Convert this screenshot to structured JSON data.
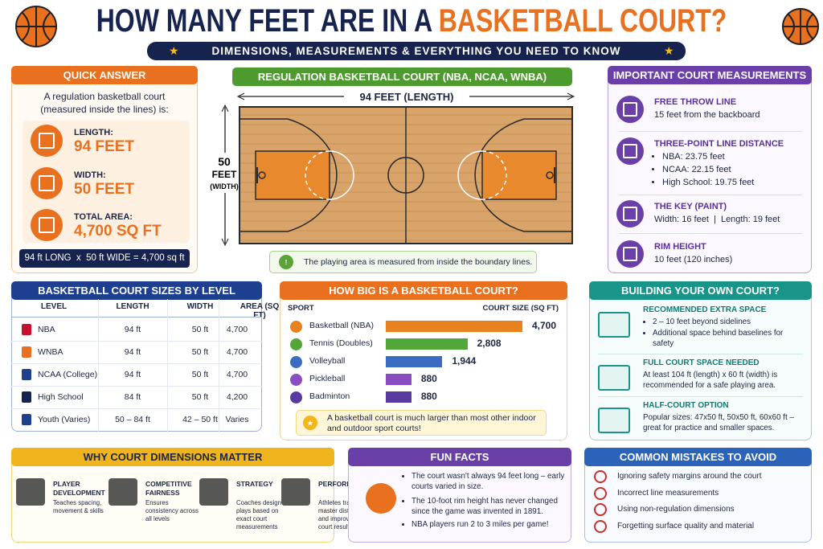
{
  "header": {
    "title_main": "HOW MANY FEET ARE IN A",
    "title_accent": "BASKETBALL COURT?",
    "subtitle": "DIMENSIONS, MEASUREMENTS & EVERYTHING YOU NEED TO KNOW"
  },
  "quick_answer": {
    "title": "QUICK ANSWER",
    "intro": "A regulation basketball court (measured inside the lines) is:",
    "items": [
      {
        "label": "LENGTH:",
        "value": "94 FEET"
      },
      {
        "label": "WIDTH:",
        "value": "50 FEET"
      },
      {
        "label": "TOTAL AREA:",
        "value": "4,700 SQ FT"
      }
    ],
    "formula": "94 ft LONG  x  50 ft WIDE = 4,700 sq ft"
  },
  "court": {
    "title": "REGULATION BASKETBALL COURT (NBA, NCAA, WNBA)",
    "length_label": "94 FEET (LENGTH)",
    "width_number": "50",
    "width_unit": "FEET",
    "width_note": "(WIDTH)",
    "note": "The playing area is measured from inside the boundary lines."
  },
  "measurements": {
    "title": "IMPORTANT COURT MEASUREMENTS",
    "items": [
      {
        "title": "FREE THROW LINE",
        "lines": [
          "15 feet from the backboard"
        ]
      },
      {
        "title": "THREE-POINT LINE DISTANCE",
        "lines": [
          "NBA: 23.75 feet",
          "NCAA: 22.15 feet",
          "High School: 19.75 feet"
        ]
      },
      {
        "title": "THE KEY (PAINT)",
        "lines": [
          "Width: 16 feet  |  Length: 19 feet"
        ]
      },
      {
        "title": "RIM HEIGHT",
        "lines": [
          "10 feet (120 inches)"
        ]
      }
    ]
  },
  "sizes_table": {
    "title": "BASKETBALL COURT SIZES BY LEVEL",
    "columns": [
      "LEVEL",
      "LENGTH",
      "WIDTH",
      "AREA (SQ FT)"
    ],
    "rows": [
      [
        "NBA",
        "94 ft",
        "50 ft",
        "4,700"
      ],
      [
        "WNBA",
        "94 ft",
        "50 ft",
        "4,700"
      ],
      [
        "NCAA (College)",
        "94 ft",
        "50 ft",
        "4,700"
      ],
      [
        "High School",
        "84 ft",
        "50 ft",
        "4,200"
      ],
      [
        "Youth (Varies)",
        "50 – 84 ft",
        "42 – 50 ft",
        "Varies"
      ]
    ]
  },
  "size_chart": {
    "title": "HOW BIG IS A BASKETBALL COURT?",
    "sport_header": "SPORT",
    "size_header": "COURT SIZE (SQ FT)",
    "categories": [
      "Basketball (NBA)",
      "Tennis (Doubles)",
      "Volleyball",
      "Pickleball",
      "Badminton"
    ],
    "values": [
      4700,
      2808,
      1944,
      880,
      880
    ],
    "value_labels": [
      "4,700",
      "2,808",
      "1,944",
      "880",
      "880"
    ],
    "colors": [
      "#e8821e",
      "#52a63a",
      "#3a6cc0",
      "#8a4cc0",
      "#5a3aa0"
    ],
    "note": "A basketball court is much larger than most other indoor and outdoor sport courts!"
  },
  "building": {
    "title": "BUILDING YOUR OWN COURT?",
    "items": [
      {
        "title": "RECOMMENDED EXTRA SPACE",
        "lines": [
          "2 – 10 feet beyond sidelines",
          "Additional space behind baselines for safety"
        ]
      },
      {
        "title": "FULL COURT SPACE NEEDED",
        "lines": [
          "At least 104 ft (length) x 60 ft (width) is recommended for a safe playing area."
        ]
      },
      {
        "title": "HALF-COURT OPTION",
        "lines": [
          "Popular sizes: 47x50 ft, 50x50 ft, 60x60 ft – great for practice and smaller spaces."
        ]
      }
    ]
  },
  "why": {
    "title": "WHY COURT DIMENSIONS MATTER",
    "items": [
      {
        "title": "PLAYER DEVELOPMENT",
        "text": "Teaches spacing, movement & skills"
      },
      {
        "title": "COMPETITIVE FAIRNESS",
        "text": "Ensures consistency across all levels"
      },
      {
        "title": "STRATEGY",
        "text": "Coaches design plays based on exact court measurements"
      },
      {
        "title": "PERFORMANCE",
        "text": "Athletes train to master distances and improve on-court results"
      }
    ]
  },
  "fun_facts": {
    "title": "FUN FACTS",
    "items": [
      "The court wasn't always 94 feet long – early courts varied in size.",
      "The 10-foot rim height has never changed since the game was invented in 1891.",
      "NBA players run 2 to 3 miles per game!"
    ]
  },
  "mistakes": {
    "title": "COMMON MISTAKES TO AVOID",
    "items": [
      "Ignoring safety margins around the court",
      "Incorrect line measurements",
      "Using non-regulation dimensions",
      "Forgetting surface quality and material"
    ]
  }
}
